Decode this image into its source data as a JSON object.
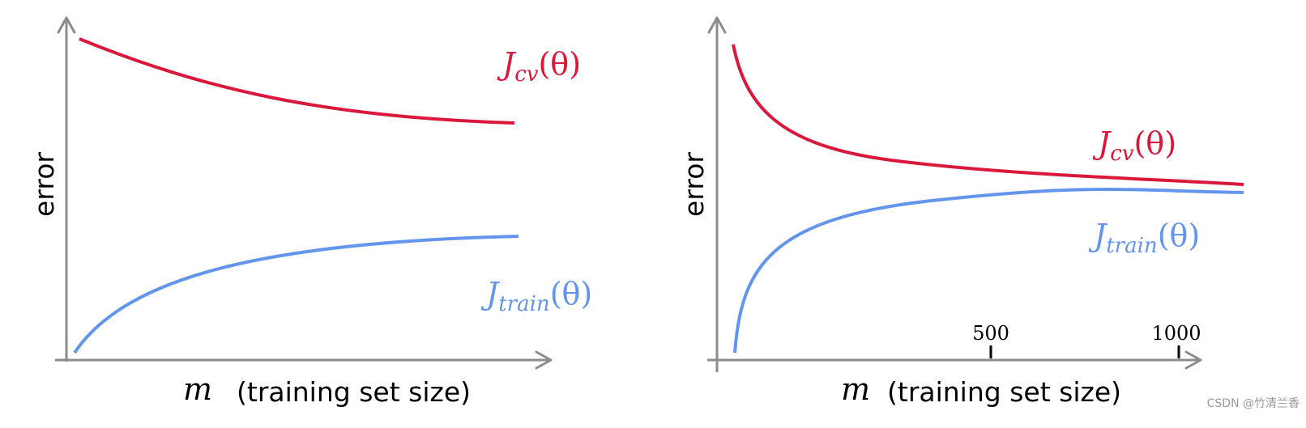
{
  "panels": [
    {
      "y_label": "error",
      "x_symbol": "m",
      "x_label": "(training set size)",
      "cv_label": {
        "base": "J",
        "sub": "cv",
        "arg": "(θ)"
      },
      "train_label": {
        "base": "J",
        "sub": "train",
        "arg": "(θ)"
      }
    },
    {
      "y_label": "error",
      "x_symbol": "m",
      "x_label": "(training set size)",
      "cv_label": {
        "base": "J",
        "sub": "cv",
        "arg": "(θ)"
      },
      "train_label": {
        "base": "J",
        "sub": "train",
        "arg": "(θ)"
      },
      "x_ticks": [
        "500",
        "1000"
      ]
    }
  ],
  "watermark": "CSDN @竹清兰香"
}
